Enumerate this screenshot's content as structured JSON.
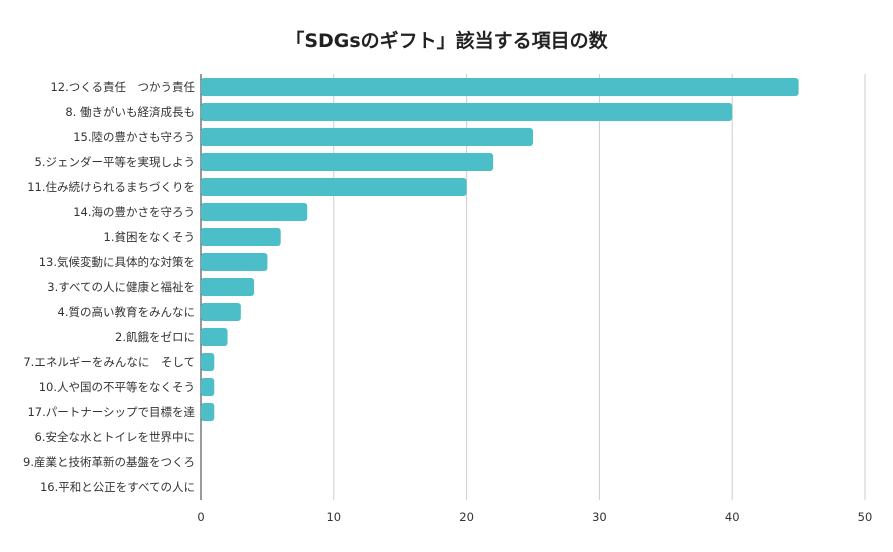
{
  "chart_data": {
    "type": "bar",
    "orientation": "horizontal",
    "title": "「SDGsのギフト」該当する項目の数",
    "xlabel": "",
    "ylabel": "",
    "categories": [
      "12.つくる責任　つかう責任",
      "8. 働きがいも経済成長も",
      "15.陸の豊かさも守ろう",
      "5.ジェンダー平等を実現しよう",
      "11.住み続けられるまちづくりを",
      "14.海の豊かさを守ろう",
      "1.貧困をなくそう",
      "13.気候変動に具体的な対策を",
      "3.すべての人に健康と福祉を",
      "4.質の高い教育をみんなに",
      "2.飢餓をゼロに",
      "7.エネルギーをみんなに　そして",
      "10.人や国の不平等をなくそう",
      "17.パートナーシップで目標を達",
      "6.安全な水とトイレを世界中に",
      "9.産業と技術革新の基盤をつくろ",
      "16.平和と公正をすべての人に"
    ],
    "values": [
      45,
      40,
      25,
      22,
      20,
      8,
      6,
      5,
      4,
      3,
      2,
      1,
      1,
      1,
      0,
      0,
      0
    ],
    "xlim": [
      0,
      50
    ],
    "xticks": [
      0,
      10,
      20,
      30,
      40,
      50
    ],
    "grid": true,
    "bar_color": "#4bbec7",
    "grid_color": "#cccccc",
    "axis_color": "#333333"
  }
}
